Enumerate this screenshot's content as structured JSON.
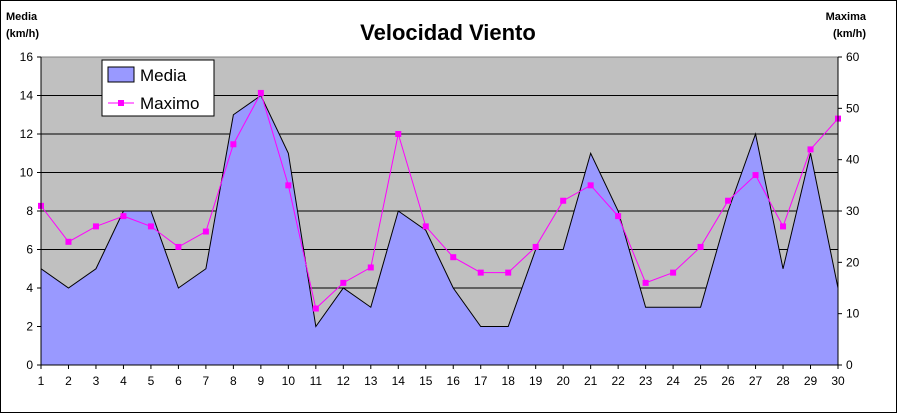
{
  "chart_data": {
    "type": "area+line",
    "title": "Velocidad Viento",
    "left_axis_title": [
      "Media",
      "(km/h)"
    ],
    "right_axis_title": [
      "Maxima",
      "(km/h)"
    ],
    "x": [
      1,
      2,
      3,
      4,
      5,
      6,
      7,
      8,
      9,
      10,
      11,
      12,
      13,
      14,
      15,
      16,
      17,
      18,
      19,
      20,
      21,
      22,
      23,
      24,
      25,
      26,
      27,
      28,
      29,
      30
    ],
    "x_tick_labels": [
      "1",
      "2",
      "3",
      "4",
      "5",
      "6",
      "7",
      "8",
      "9",
      "10",
      "11",
      "12",
      "13",
      "14",
      "15",
      "16",
      "17",
      "18",
      "19",
      "20",
      "21",
      "22",
      "23",
      "24",
      "25",
      "26",
      "27",
      "28",
      "29",
      "30"
    ],
    "y_left_ticks": [
      "0",
      "2",
      "4",
      "6",
      "8",
      "10",
      "12",
      "14",
      "16"
    ],
    "y_right_ticks": [
      "0",
      "10",
      "20",
      "30",
      "40",
      "50",
      "60"
    ],
    "ylim_left": [
      0,
      16
    ],
    "ylim_right": [
      0,
      60
    ],
    "grid": "horizontal",
    "legend_position": "top-left",
    "series": [
      {
        "name": "Media",
        "kind": "area",
        "axis": "left",
        "color": "#9999ff",
        "values": [
          5,
          4,
          5,
          8,
          8,
          4,
          5,
          13,
          14,
          11,
          2,
          4,
          3,
          8,
          7,
          4,
          2,
          2,
          6,
          6,
          11,
          8,
          3,
          3,
          3,
          8,
          12,
          5,
          11,
          4
        ]
      },
      {
        "name": "Maximo",
        "kind": "line",
        "axis": "right",
        "color": "#ff00ff",
        "values": [
          31,
          24,
          27,
          29,
          27,
          23,
          26,
          43,
          53,
          35,
          11,
          16,
          19,
          45,
          27,
          21,
          18,
          18,
          23,
          32,
          35,
          29,
          16,
          18,
          23,
          32,
          37,
          27,
          42,
          48
        ]
      }
    ]
  },
  "colors": {
    "plot_background": "#c0c0c0",
    "grid": "#000000",
    "area_outline": "#000000"
  }
}
